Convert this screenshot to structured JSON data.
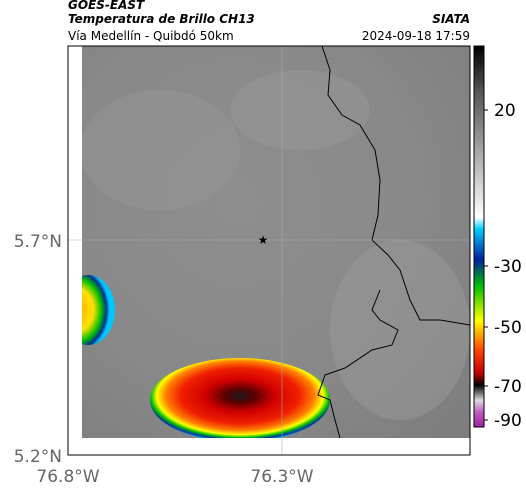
{
  "header": {
    "source": "GOES-EAST",
    "product": "Temperatura de Brillo CH13",
    "agency": "SIATA",
    "route": "Vía Medellín - Quibdó 50km",
    "timestamp": "2024-09-18 17:59"
  },
  "map": {
    "lat_labels": [
      "5.7°N",
      "5.2°N"
    ],
    "lon_labels": [
      "76.8°W",
      "76.3°W"
    ]
  },
  "colorbar": {
    "ticks": [
      20,
      -30,
      -50,
      -70,
      -90
    ]
  }
}
